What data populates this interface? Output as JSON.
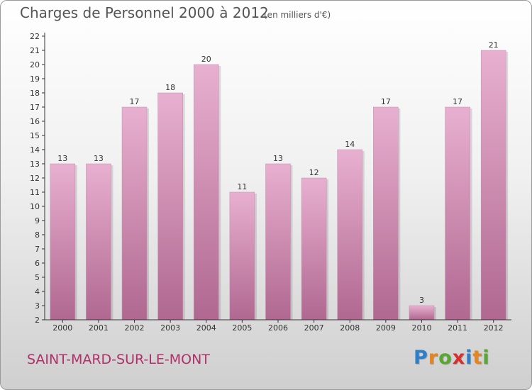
{
  "title": "Charges de Personnel 2000 à 2012",
  "subtitle": "(en milliers d'€)",
  "commune": "SAINT-MARD-SUR-LE-MONT",
  "logo": {
    "letters": [
      "P",
      "r",
      "o",
      "x",
      "i",
      "t",
      "i"
    ],
    "colors": [
      "#2e7fc9",
      "#e6851e",
      "#58a832",
      "#d92e2e",
      "#2e7fc9",
      "#e6851e",
      "#58a832"
    ]
  },
  "chart_data": {
    "type": "bar",
    "categories": [
      "2000",
      "2001",
      "2002",
      "2003",
      "2004",
      "2005",
      "2006",
      "2007",
      "2008",
      "2009",
      "2010",
      "2011",
      "2012"
    ],
    "values": [
      13,
      13,
      17,
      18,
      20,
      11,
      13,
      12,
      14,
      17,
      3,
      17,
      21
    ],
    "title": "Charges de Personnel 2000 à 2012",
    "ylim": [
      2,
      22
    ],
    "yticks": [
      2,
      3,
      4,
      5,
      6,
      7,
      8,
      9,
      10,
      11,
      12,
      13,
      14,
      15,
      16,
      17,
      18,
      19,
      20,
      21,
      22
    ],
    "grid": false,
    "data_labels": true,
    "bar_color": "#d48cb4"
  }
}
